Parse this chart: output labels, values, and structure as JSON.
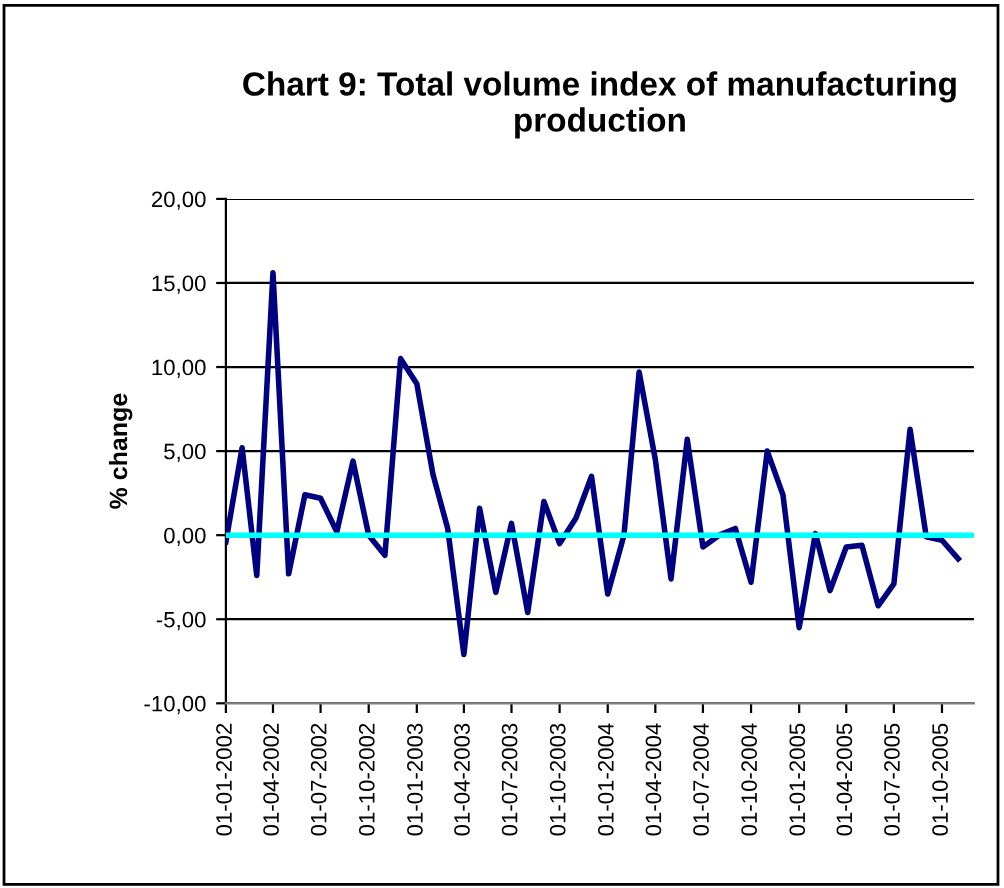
{
  "chart_data": {
    "type": "line",
    "title": "Chart 9: Total volume index of manufacturing production",
    "ylabel": "% change",
    "x": [
      "2002-01-01",
      "2002-02-01",
      "2002-03-01",
      "2002-04-01",
      "2002-05-01",
      "2002-06-01",
      "2002-07-01",
      "2002-08-01",
      "2002-09-01",
      "2002-10-01",
      "2002-11-01",
      "2002-12-01",
      "2003-01-01",
      "2003-02-01",
      "2003-03-01",
      "2003-04-01",
      "2003-05-01",
      "2003-06-01",
      "2003-07-01",
      "2003-08-01",
      "2003-09-01",
      "2003-10-01",
      "2003-11-01",
      "2003-12-01",
      "2004-01-01",
      "2004-02-01",
      "2004-03-01",
      "2004-04-01",
      "2004-05-01",
      "2004-06-01",
      "2004-07-01",
      "2004-08-01",
      "2004-09-01",
      "2004-10-01",
      "2004-11-01",
      "2004-12-01",
      "2005-01-01",
      "2005-02-01",
      "2005-03-01",
      "2005-04-01",
      "2005-05-01",
      "2005-06-01",
      "2005-07-01",
      "2005-08-01",
      "2005-09-01",
      "2005-10-01",
      "2005-11-01"
    ],
    "series": [
      {
        "color": "#000080",
        "values": [
          -0.4,
          5.2,
          -2.4,
          15.6,
          -2.3,
          2.4,
          2.2,
          0.2,
          4.4,
          0.0,
          -1.2,
          10.5,
          9.0,
          3.6,
          0.4,
          -7.1,
          1.6,
          -3.4,
          0.7,
          -4.6,
          2.0,
          -0.5,
          1.0,
          3.5,
          -3.5,
          0.0,
          9.7,
          4.5,
          -2.6,
          5.7,
          -0.7,
          0.0,
          0.4,
          -2.8,
          5.0,
          2.4,
          -5.5,
          0.1,
          -3.3,
          -0.7,
          -0.6,
          -4.2,
          -2.9,
          6.3,
          -0.1,
          -0.3,
          -1.4
        ]
      }
    ],
    "xlim": [
      "2002-01-01",
      "2005-12-01"
    ],
    "xticks": [
      {
        "value": "2002-01-01",
        "label": "01-01-2002"
      },
      {
        "value": "2002-04-01",
        "label": "01-04-2002"
      },
      {
        "value": "2002-07-01",
        "label": "01-07-2002"
      },
      {
        "value": "2002-10-01",
        "label": "01-10-2002"
      },
      {
        "value": "2003-01-01",
        "label": "01-01-2003"
      },
      {
        "value": "2003-04-01",
        "label": "01-04-2003"
      },
      {
        "value": "2003-07-01",
        "label": "01-07-2003"
      },
      {
        "value": "2003-10-01",
        "label": "01-10-2003"
      },
      {
        "value": "2004-01-01",
        "label": "01-01-2004"
      },
      {
        "value": "2004-04-01",
        "label": "01-04-2004"
      },
      {
        "value": "2004-07-01",
        "label": "01-07-2004"
      },
      {
        "value": "2004-10-01",
        "label": "01-10-2004"
      },
      {
        "value": "2005-01-01",
        "label": "01-01-2005"
      },
      {
        "value": "2005-04-01",
        "label": "01-04-2005"
      },
      {
        "value": "2005-07-01",
        "label": "01-07-2005"
      },
      {
        "value": "2005-10-01",
        "label": "01-10-2005"
      }
    ],
    "ylim": [
      -10,
      20
    ],
    "yticks": [
      {
        "value": -10,
        "label": "-10,00"
      },
      {
        "value": -5,
        "label": "-5,00"
      },
      {
        "value": 0,
        "label": "0,00"
      },
      {
        "value": 5,
        "label": "5,00"
      },
      {
        "value": 10,
        "label": "10,00"
      },
      {
        "value": 15,
        "label": "15,00"
      },
      {
        "value": 20,
        "label": "20,00"
      }
    ],
    "ref_lines": [
      {
        "axis": "y",
        "value": 0,
        "color": "#00ffff"
      }
    ],
    "grid": "y",
    "marker": "none",
    "line_style": "solid"
  }
}
